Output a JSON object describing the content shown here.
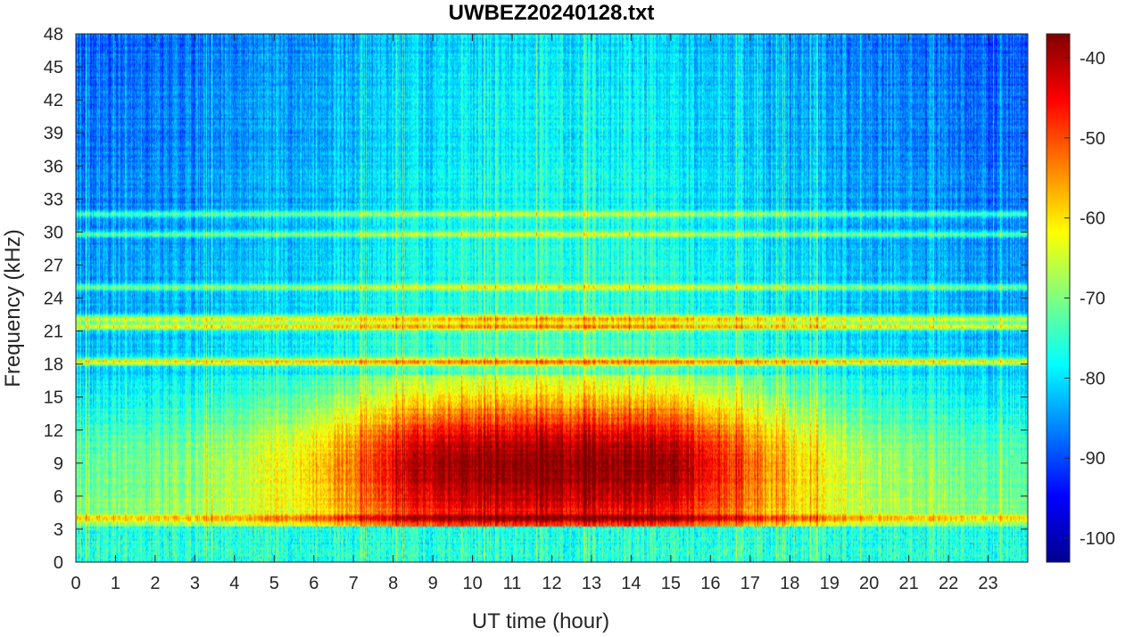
{
  "chart_data": {
    "type": "heatmap",
    "title": "UWBEZ20240128.txt",
    "xlabel": "UT time (hour)",
    "ylabel": "Frequency (kHz)",
    "xlim": [
      0,
      24
    ],
    "ylim": [
      0,
      48
    ],
    "x_ticks": [
      "0",
      "1",
      "2",
      "3",
      "4",
      "5",
      "6",
      "7",
      "8",
      "9",
      "10",
      "11",
      "12",
      "13",
      "14",
      "15",
      "16",
      "17",
      "18",
      "19",
      "20",
      "21",
      "22",
      "23"
    ],
    "y_ticks": [
      "0",
      "3",
      "6",
      "9",
      "12",
      "15",
      "18",
      "21",
      "24",
      "27",
      "30",
      "33",
      "36",
      "39",
      "42",
      "45",
      "48"
    ],
    "colorbar": {
      "colormap": "jet",
      "range": [
        -103,
        -37
      ],
      "ticks": [
        "-40",
        "-50",
        "-60",
        "-70",
        "-80",
        "-90",
        "-100"
      ]
    },
    "colormap_stops": [
      "#00008f",
      "#0000ff",
      "#00ffff",
      "#ffff00",
      "#ff0000",
      "#800000"
    ],
    "features": {
      "narrowband_lines_khz": [
        18.2,
        21.4,
        22.1,
        25.0,
        4.0,
        31.6,
        29.8
      ],
      "broadband_noise_peak_hours": [
        9,
        17
      ],
      "broadband_noise_band_khz": [
        3,
        17
      ]
    }
  }
}
